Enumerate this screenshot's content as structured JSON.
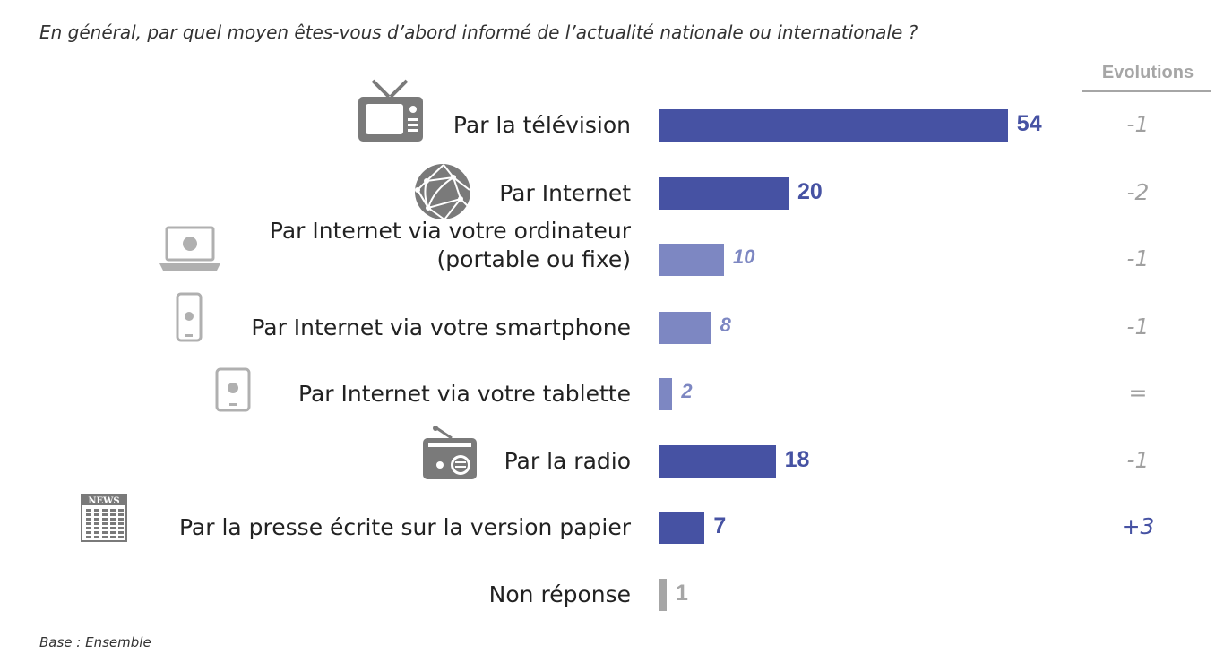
{
  "question": "En général, par quel moyen êtes-vous d’abord informé de l’actualité nationale ou internationale ?",
  "evolutions_header": "Evolutions",
  "base": "Base : Ensemble",
  "colors": {
    "primary": "#4652a3",
    "secondary": "#7d87c2",
    "nonresponse": "#a6a6a6",
    "evo_neutral": "#a0a0a0",
    "evo_positive": "#4652a3"
  },
  "chart_data": {
    "type": "bar",
    "orientation": "horizontal",
    "title": "En général, par quel moyen êtes-vous d’abord informé de l’actualité nationale ou internationale ?",
    "categories": [
      "Par la télévision",
      "Par Internet",
      "Par Internet via votre ordinateur (portable ou fixe)",
      "Par Internet via votre smartphone",
      "Par Internet via votre tablette",
      "Par la radio",
      "Par la presse écrite sur la version papier",
      "Non réponse"
    ],
    "values": [
      54,
      20,
      10,
      8,
      2,
      18,
      7,
      1
    ],
    "value_labels": [
      "54",
      "20",
      "10",
      "8",
      "2",
      "18",
      "7",
      "1"
    ],
    "evolutions": [
      "-1",
      "-2",
      "-1",
      "-1",
      "=",
      "-1",
      "+3",
      ""
    ],
    "styles": [
      "primary",
      "primary",
      "secondary",
      "secondary",
      "secondary",
      "primary",
      "primary",
      "nonresponse"
    ],
    "icons": [
      "tv-icon",
      "globe-icon",
      "laptop-icon",
      "smartphone-icon",
      "tablet-icon",
      "radio-icon",
      "newspaper-icon",
      ""
    ],
    "newspaper_icon_text": "NEWS"
  }
}
